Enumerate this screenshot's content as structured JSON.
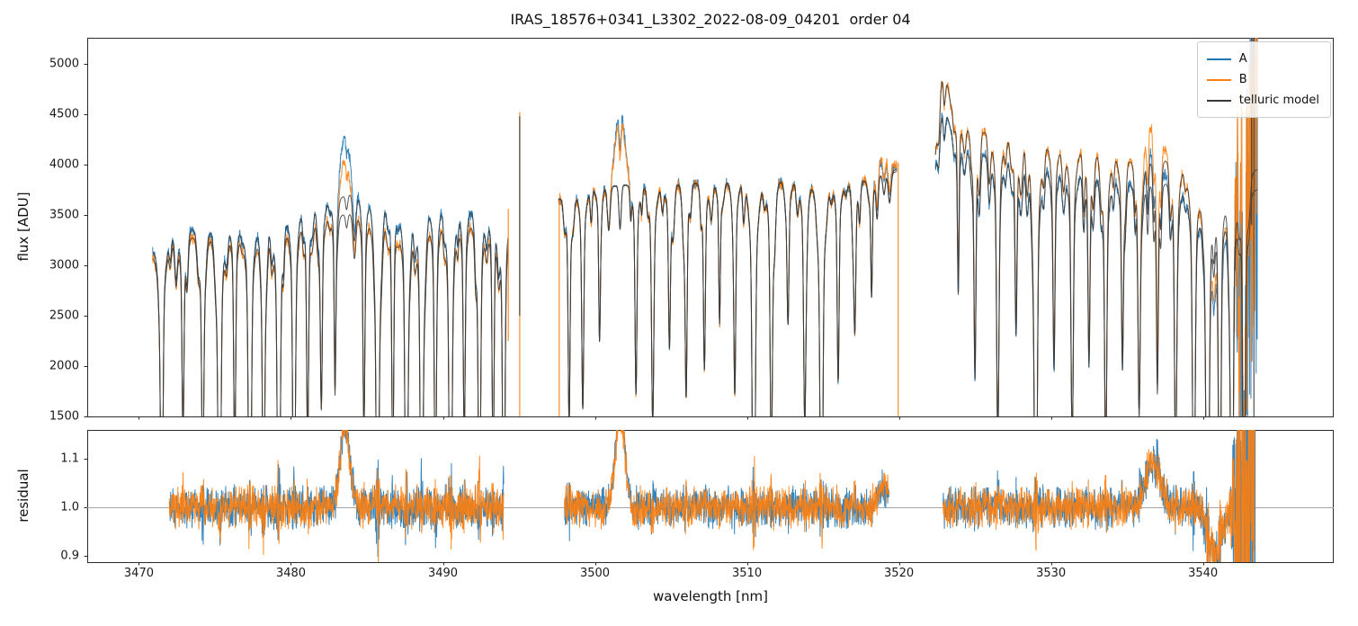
{
  "figure": {
    "title": "IRAS_18576+0341_L3302_2022-08-09_04201  order 04",
    "xlabel": "wavelength [nm]",
    "ylabel_top": "flux [ADU]",
    "ylabel_bottom": "residual"
  },
  "legend": {
    "items": [
      {
        "label": "A",
        "color": "#1f77b4"
      },
      {
        "label": "B",
        "color": "#ff7f0e"
      },
      {
        "label": "telluric model",
        "color": "#3a3a3a"
      }
    ]
  },
  "chart_data": {
    "type": "line",
    "title": "IRAS_18576+0341_L3302_2022-08-09_04201  order 04",
    "xlabel": "wavelength [nm]",
    "xlim": [
      3466.6,
      3548.6
    ],
    "xticks": [
      3470,
      3480,
      3490,
      3500,
      3510,
      3520,
      3530,
      3540
    ],
    "panels": [
      {
        "name": "flux",
        "ylabel": "flux [ADU]",
        "ylim": [
          1500,
          5258
        ],
        "yticks": [
          1500,
          2000,
          2500,
          3000,
          3500,
          4000,
          4500,
          5000
        ]
      },
      {
        "name": "residual",
        "ylabel": "residual",
        "ylim": [
          0.887,
          1.159
        ],
        "yticks": [
          0.9,
          1.0,
          1.1
        ],
        "refline": 1.0
      }
    ],
    "series": [
      {
        "name": "A",
        "color": "#1f77b4"
      },
      {
        "name": "B",
        "color": "#ff7f0e"
      },
      {
        "name": "telluric model",
        "color": "#3a3a3a"
      }
    ],
    "segments": [
      {
        "xrange": [
          3470.9,
          3494.3
        ],
        "resid_range": [
          3472.0,
          3494.0
        ],
        "continuum_A": [
          [
            3470.9,
            3150
          ],
          [
            3472,
            3280
          ],
          [
            3474,
            3380
          ],
          [
            3476,
            3440
          ],
          [
            3478,
            3500
          ],
          [
            3480,
            3560
          ],
          [
            3482,
            3620
          ],
          [
            3483.4,
            3680
          ],
          [
            3484.5,
            3730
          ],
          [
            3486,
            3700
          ],
          [
            3488,
            3660
          ],
          [
            3490,
            3610
          ],
          [
            3492,
            3570
          ],
          [
            3494.3,
            3580
          ]
        ],
        "continuum_B": [
          [
            3470.9,
            3080
          ],
          [
            3472,
            3200
          ],
          [
            3474,
            3300
          ],
          [
            3476,
            3340
          ],
          [
            3478,
            3380
          ],
          [
            3480,
            3430
          ],
          [
            3482,
            3470
          ],
          [
            3483.4,
            3500
          ],
          [
            3484.5,
            3520
          ],
          [
            3486,
            3500
          ],
          [
            3488,
            3470
          ],
          [
            3490,
            3440
          ],
          [
            3492,
            3420
          ],
          [
            3494.3,
            3440
          ]
        ],
        "emission": [
          {
            "center": 3483.55,
            "sigma": 0.32,
            "amp_A": 600,
            "amp_B": 560
          }
        ],
        "lines": [
          [
            3471.5,
            0.07,
            0.85
          ],
          [
            3472.9,
            0.06,
            0.5
          ],
          [
            3474.2,
            0.07,
            0.6
          ],
          [
            3475.3,
            0.08,
            0.97
          ],
          [
            3476.3,
            0.06,
            0.55
          ],
          [
            3477.3,
            0.08,
            0.97
          ],
          [
            3478.2,
            0.07,
            0.75
          ],
          [
            3479.2,
            0.08,
            0.98
          ],
          [
            3480.2,
            0.07,
            0.85
          ],
          [
            3481.1,
            0.06,
            0.55
          ],
          [
            3482.0,
            0.06,
            0.45
          ],
          [
            3482.9,
            0.05,
            0.4
          ],
          [
            3484.8,
            0.06,
            0.5
          ],
          [
            3485.7,
            0.08,
            0.97
          ],
          [
            3486.7,
            0.06,
            0.6
          ],
          [
            3487.6,
            0.08,
            0.95
          ],
          [
            3488.6,
            0.08,
            0.97
          ],
          [
            3489.5,
            0.06,
            0.65
          ],
          [
            3490.5,
            0.08,
            0.95
          ],
          [
            3491.4,
            0.06,
            0.5
          ],
          [
            3492.4,
            0.07,
            0.8
          ],
          [
            3493.3,
            0.06,
            0.55
          ],
          [
            3494.0,
            0.07,
            0.85
          ]
        ]
      },
      {
        "xrange": [
          3497.6,
          3519.85
        ],
        "resid_range": [
          3498.0,
          3519.35
        ],
        "continuum_A": [
          [
            3497.6,
            3650
          ],
          [
            3499,
            3720
          ],
          [
            3500.5,
            3780
          ],
          [
            3502,
            3800
          ],
          [
            3504,
            3790
          ],
          [
            3506,
            3820
          ],
          [
            3508,
            3830
          ],
          [
            3510,
            3840
          ],
          [
            3512,
            3850
          ],
          [
            3514,
            3840
          ],
          [
            3516,
            3820
          ],
          [
            3517.5,
            3830
          ],
          [
            3518.7,
            3880
          ],
          [
            3519.85,
            3930
          ]
        ],
        "continuum_B": [
          [
            3497.6,
            3660
          ],
          [
            3499,
            3710
          ],
          [
            3500.5,
            3770
          ],
          [
            3502,
            3790
          ],
          [
            3504,
            3780
          ],
          [
            3506,
            3810
          ],
          [
            3508,
            3820
          ],
          [
            3510,
            3830
          ],
          [
            3512,
            3840
          ],
          [
            3514,
            3830
          ],
          [
            3516,
            3810
          ],
          [
            3517.5,
            3820
          ],
          [
            3518.7,
            3890
          ],
          [
            3519.85,
            3950
          ]
        ],
        "emission": [
          {
            "center": 3501.65,
            "sigma": 0.3,
            "amp_A": 800,
            "amp_B": 720
          },
          {
            "center": 3519.0,
            "sigma": 0.45,
            "amp_A": 150,
            "amp_B": 160
          }
        ],
        "lines": [
          [
            3498.3,
            0.06,
            0.5
          ],
          [
            3499.2,
            0.06,
            0.45
          ],
          [
            3500.3,
            0.05,
            0.3
          ],
          [
            3502.7,
            0.06,
            0.45
          ],
          [
            3503.8,
            0.07,
            0.5
          ],
          [
            3504.9,
            0.06,
            0.35
          ],
          [
            3506.0,
            0.06,
            0.45
          ],
          [
            3507.2,
            0.06,
            0.4
          ],
          [
            3508.2,
            0.05,
            0.3
          ],
          [
            3509.2,
            0.06,
            0.45
          ],
          [
            3510.45,
            0.08,
            0.98
          ],
          [
            3511.6,
            0.07,
            0.6
          ],
          [
            3512.7,
            0.06,
            0.3
          ],
          [
            3513.8,
            0.07,
            0.5
          ],
          [
            3514.9,
            0.08,
            0.93
          ],
          [
            3516.0,
            0.06,
            0.4
          ],
          [
            3517.1,
            0.06,
            0.3
          ],
          [
            3518.2,
            0.05,
            0.25
          ]
        ]
      },
      {
        "xrange": [
          3522.4,
          3543.6
        ],
        "resid_range": [
          3522.9,
          3543.45
        ],
        "continuum_A": [
          [
            3522.4,
            3950
          ],
          [
            3522.9,
            4650
          ],
          [
            3523.4,
            4350
          ],
          [
            3524.5,
            4150
          ],
          [
            3526,
            4080
          ],
          [
            3528,
            4000
          ],
          [
            3530,
            3950
          ],
          [
            3532,
            3900
          ],
          [
            3534,
            3850
          ],
          [
            3536,
            3800
          ],
          [
            3537.5,
            3820
          ],
          [
            3539,
            3760
          ],
          [
            3540.5,
            3680
          ],
          [
            3542,
            3700
          ],
          [
            3543.6,
            3750
          ]
        ],
        "continuum_B": [
          [
            3522.4,
            4100
          ],
          [
            3522.9,
            5050
          ],
          [
            3523.4,
            4600
          ],
          [
            3524.5,
            4380
          ],
          [
            3526,
            4300
          ],
          [
            3528,
            4230
          ],
          [
            3530,
            4180
          ],
          [
            3532,
            4130
          ],
          [
            3534,
            4080
          ],
          [
            3536,
            4030
          ],
          [
            3537.5,
            4050
          ],
          [
            3539,
            3970
          ],
          [
            3540.5,
            3850
          ],
          [
            3542,
            3880
          ],
          [
            3543.6,
            3950
          ]
        ],
        "emission": [
          {
            "center": 3536.7,
            "sigma": 0.5,
            "amp_A": 350,
            "amp_B": 380
          },
          {
            "center": 3540.8,
            "sigma": 0.45,
            "amp_A": -360,
            "amp_B": -380
          }
        ],
        "lines": [
          [
            3523.9,
            0.05,
            0.3
          ],
          [
            3525.0,
            0.06,
            0.45
          ],
          [
            3526.5,
            0.07,
            0.55
          ],
          [
            3527.7,
            0.06,
            0.35
          ],
          [
            3529.0,
            0.08,
            0.97
          ],
          [
            3530.2,
            0.06,
            0.4
          ],
          [
            3531.4,
            0.07,
            0.55
          ],
          [
            3532.5,
            0.06,
            0.4
          ],
          [
            3533.6,
            0.07,
            0.6
          ],
          [
            3534.7,
            0.06,
            0.4
          ],
          [
            3535.8,
            0.07,
            0.5
          ],
          [
            3537.0,
            0.06,
            0.45
          ],
          [
            3538.2,
            0.07,
            0.6
          ],
          [
            3539.4,
            0.08,
            0.75
          ],
          [
            3540.3,
            0.09,
            0.97
          ],
          [
            3541.1,
            0.07,
            0.85
          ],
          [
            3541.9,
            0.08,
            0.97
          ],
          [
            3542.7,
            0.07,
            0.9
          ]
        ]
      }
    ],
    "artifacts": [
      {
        "x": 3494.3,
        "y0": 2250,
        "y1": 3560,
        "series": "B"
      },
      {
        "x": 3495.05,
        "y0": 1500,
        "y1": 4520,
        "series": "B"
      },
      {
        "x": 3495.05,
        "y0": 2500,
        "y1": 4480,
        "series": "model"
      },
      {
        "x": 3497.65,
        "y0": 1500,
        "y1": 3640,
        "series": "B"
      },
      {
        "x": 3519.95,
        "y0": 1500,
        "y1": 4020,
        "series": "B"
      },
      {
        "x": 3543.2,
        "y0": 3400,
        "y1": 5258,
        "series": "model"
      },
      {
        "x": 3543.35,
        "y0": 1500,
        "y1": 5258,
        "series": "model"
      }
    ],
    "noise": {
      "flux_amp": 70,
      "residual_amp": 0.045,
      "chaos_start": 3541.65,
      "chaos_flux_amp": 1900,
      "chaos_residual_amp": 0.5
    }
  }
}
